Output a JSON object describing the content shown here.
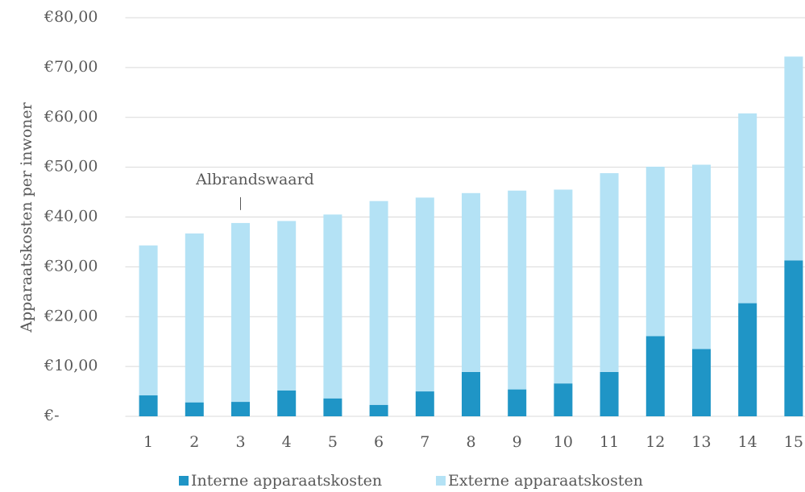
{
  "chart_data": {
    "type": "stacked_bar",
    "y_axis_label": "Apparaatskosten per inwoner",
    "categories": [
      "1",
      "2",
      "3",
      "4",
      "5",
      "6",
      "7",
      "8",
      "9",
      "10",
      "11",
      "12",
      "13",
      "14",
      "15"
    ],
    "series": [
      {
        "name": "Interne apparaatskosten",
        "color": "#1f95c6",
        "values": [
          4.2,
          2.8,
          2.9,
          5.2,
          3.6,
          2.3,
          5.0,
          8.9,
          5.4,
          6.6,
          8.9,
          16.1,
          13.5,
          22.7,
          31.3
        ]
      },
      {
        "name": "Externe apparaatskosten",
        "color": "#b4e2f5",
        "values": [
          30.1,
          33.9,
          35.9,
          34.0,
          36.9,
          40.9,
          38.9,
          35.9,
          39.9,
          38.9,
          39.9,
          34.0,
          37.0,
          38.1,
          40.9
        ]
      }
    ],
    "ylim": [
      0,
      80
    ],
    "yticks": [
      {
        "value": 0,
        "label": "€-"
      },
      {
        "value": 10,
        "label": "€10,00"
      },
      {
        "value": 20,
        "label": "€20,00"
      },
      {
        "value": 30,
        "label": "€30,00"
      },
      {
        "value": 40,
        "label": "€40,00"
      },
      {
        "value": 50,
        "label": "€50,00"
      },
      {
        "value": 60,
        "label": "€60,00"
      },
      {
        "value": 70,
        "label": "€70,00"
      },
      {
        "value": 80,
        "label": "€80,00"
      }
    ],
    "grid": true,
    "legend": "bottom",
    "annotations": [
      {
        "text": "Albrandswaard",
        "x": "3"
      }
    ]
  }
}
